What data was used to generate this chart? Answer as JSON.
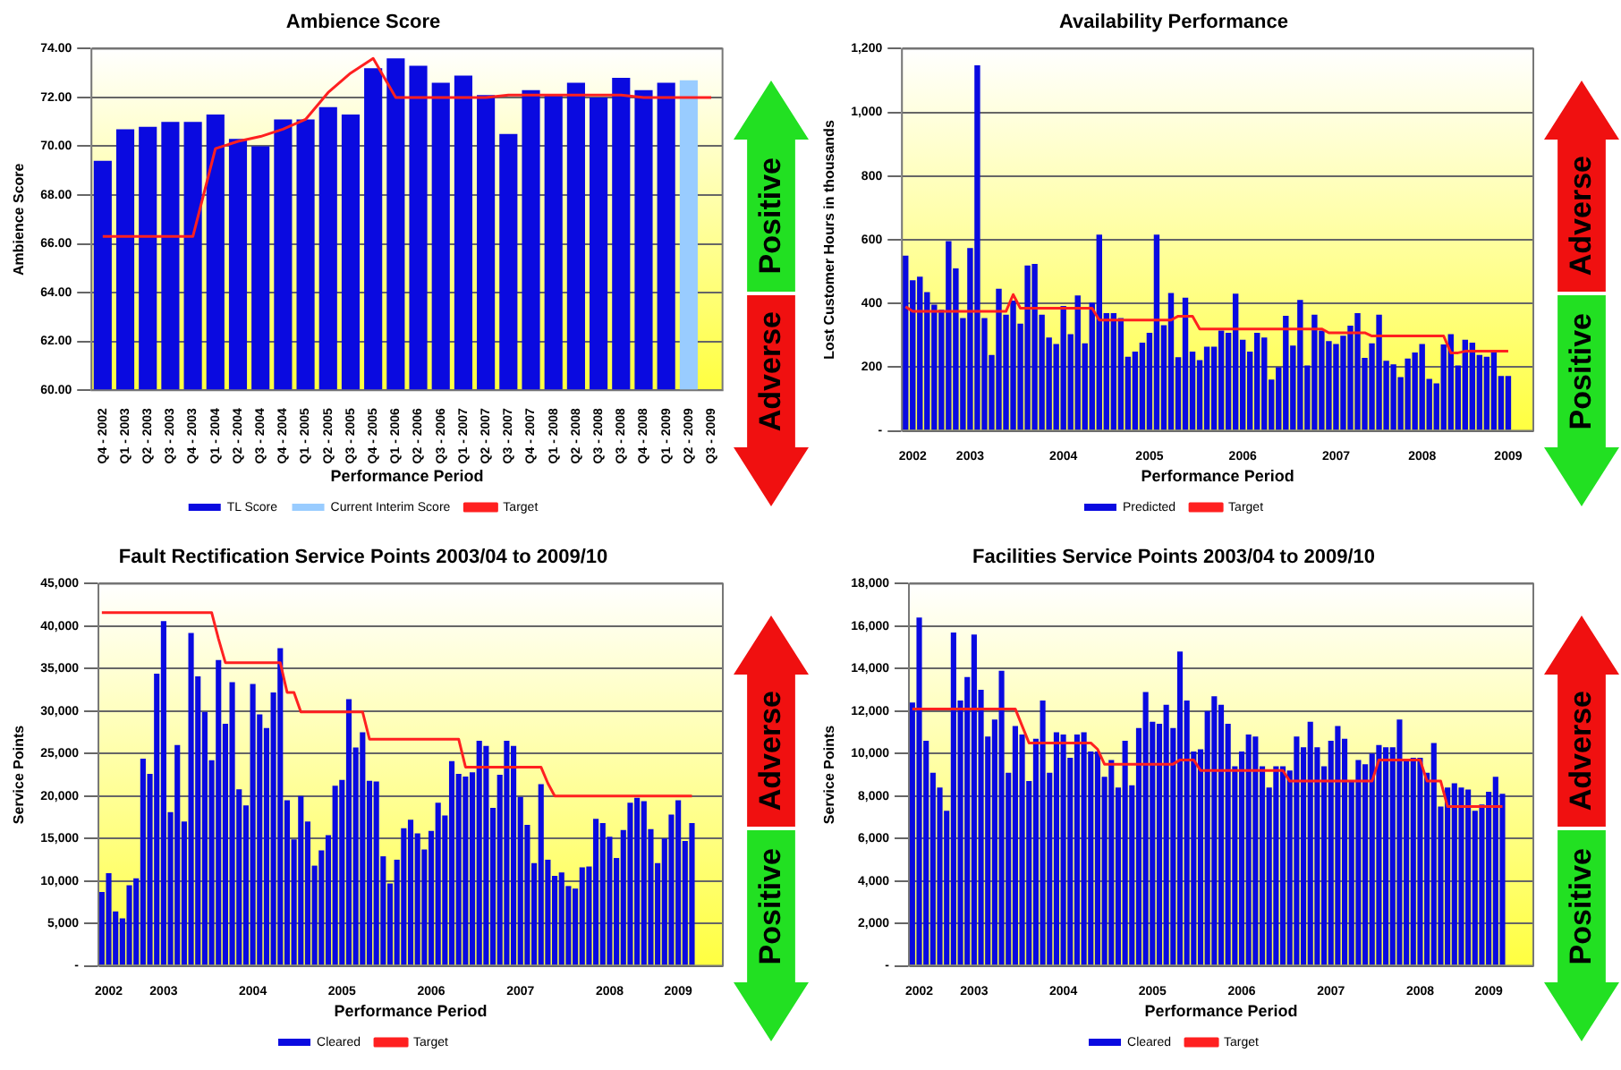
{
  "chart_data": [
    {
      "type": "bar",
      "title": "Ambience Score",
      "xlabel": "Performance Period",
      "ylabel": "Ambience Score",
      "categories": [
        "Q4 - 2002",
        "Q1 - 2003",
        "Q2 - 2003",
        "Q3 - 2003",
        "Q4 - 2003",
        "Q1 - 2004",
        "Q2 - 2004",
        "Q3 - 2004",
        "Q4 - 2004",
        "Q1 - 2005",
        "Q2 - 2005",
        "Q3 - 2005",
        "Q4 - 2005",
        "Q1 - 2006",
        "Q2 - 2006",
        "Q3 - 2006",
        "Q1 - 2007",
        "Q2 - 2007",
        "Q3 - 2007",
        "Q4 - 2007",
        "Q1 - 2008",
        "Q2 - 2008",
        "Q3 - 2008",
        "Q3 - 2008",
        "Q4 - 2008",
        "Q1 - 2009",
        "Q2 - 2009",
        "Q3 - 2009"
      ],
      "series": [
        {
          "name": "TL Score",
          "color": "#0a0ae0",
          "values": [
            69.4,
            70.7,
            70.8,
            71.0,
            71.0,
            71.3,
            70.3,
            70.0,
            71.1,
            71.1,
            71.6,
            71.3,
            73.2,
            73.6,
            73.3,
            72.6,
            72.9,
            72.1,
            70.5,
            72.3,
            72.1,
            72.6,
            72.0,
            72.8,
            72.3,
            72.6,
            null,
            null
          ]
        },
        {
          "name": "Current Interim Score",
          "color": "#99ccff",
          "values": [
            null,
            null,
            null,
            null,
            null,
            null,
            null,
            null,
            null,
            null,
            null,
            null,
            null,
            null,
            null,
            null,
            null,
            null,
            null,
            null,
            null,
            null,
            null,
            null,
            null,
            null,
            72.7,
            null
          ]
        },
        {
          "name": "Target",
          "type": "line",
          "color": "#ff2020",
          "values": [
            66.3,
            66.3,
            66.3,
            66.3,
            66.3,
            69.9,
            70.2,
            70.4,
            70.7,
            71.1,
            72.2,
            73.0,
            73.6,
            72.0,
            72.0,
            72.0,
            72.0,
            72.0,
            72.1,
            72.1,
            72.1,
            72.1,
            72.1,
            72.1,
            72.0,
            72.0,
            72.0,
            72.0
          ]
        }
      ],
      "ylim": [
        60,
        74
      ],
      "yticks": [
        {
          "value": 60,
          "label": "60.00"
        },
        {
          "value": 62,
          "label": "62.00"
        },
        {
          "value": 64,
          "label": "64.00"
        },
        {
          "value": 66,
          "label": "66.00"
        },
        {
          "value": 68,
          "label": "68.00"
        },
        {
          "value": 70,
          "label": "70.00"
        },
        {
          "value": 72,
          "label": "72.00"
        },
        {
          "value": 74,
          "label": "74.00"
        }
      ],
      "grid": "y",
      "legend": "bottom",
      "marker": "none",
      "annotations": [
        "Positive",
        "Adverse"
      ]
    },
    {
      "type": "bar",
      "title": "Availability Performance",
      "xlabel": "Performance Period",
      "ylabel": "Lost Customer Hours in thousands",
      "categories": [
        null,
        "2002",
        null,
        null,
        null,
        null,
        null,
        null,
        null,
        "2003",
        null,
        null,
        null,
        null,
        null,
        null,
        null,
        null,
        null,
        null,
        null,
        null,
        "2004",
        null,
        null,
        null,
        null,
        null,
        null,
        null,
        null,
        null,
        null,
        null,
        "2005",
        null,
        null,
        null,
        null,
        null,
        null,
        null,
        null,
        null,
        null,
        null,
        null,
        "2006",
        null,
        null,
        null,
        null,
        null,
        null,
        null,
        null,
        null,
        null,
        null,
        null,
        "2007",
        null,
        null,
        null,
        null,
        null,
        null,
        null,
        null,
        null,
        null,
        null,
        "2008",
        null,
        null,
        null,
        null,
        null,
        null,
        null,
        null,
        null,
        null,
        null,
        "2009",
        null,
        null,
        null
      ],
      "series": [
        {
          "name": "Predicted",
          "color": "#0a0ae0",
          "values": [
            550,
            473,
            484,
            436,
            396,
            380,
            596,
            510,
            354,
            574,
            1148,
            354,
            238,
            446,
            365,
            409,
            337,
            519,
            524,
            365,
            293,
            273,
            392,
            304,
            425,
            275,
            403,
            616,
            370,
            370,
            354,
            233,
            249,
            277,
            308,
            616,
            332,
            433,
            231,
            418,
            249,
            222,
            264,
            264,
            315,
            308,
            431,
            286,
            249,
            308,
            293,
            161,
            200,
            361,
            268,
            411,
            205,
            365,
            315,
            282,
            273,
            299,
            330,
            370,
            229,
            275,
            365,
            220,
            209,
            169,
            227,
            246,
            273,
            163,
            149,
            271,
            304,
            205,
            286,
            277,
            238,
            233,
            249,
            172,
            172,
            null,
            null,
            null
          ]
        },
        {
          "name": "Target",
          "type": "line",
          "color": "#ff2020",
          "values": [
            390,
            375,
            375,
            375,
            375,
            375,
            375,
            375,
            375,
            375,
            375,
            375,
            375,
            375,
            375,
            428,
            385,
            385,
            385,
            385,
            385,
            385,
            385,
            385,
            385,
            385,
            385,
            348,
            348,
            348,
            348,
            348,
            348,
            348,
            348,
            348,
            348,
            348,
            360,
            360,
            360,
            320,
            320,
            320,
            320,
            320,
            320,
            320,
            320,
            320,
            320,
            320,
            320,
            320,
            320,
            320,
            320,
            320,
            320,
            308,
            308,
            308,
            308,
            308,
            308,
            298,
            298,
            298,
            298,
            298,
            298,
            298,
            298,
            298,
            298,
            298,
            245,
            245,
            250,
            250,
            250,
            250,
            250,
            250,
            250,
            null,
            null,
            null
          ]
        }
      ],
      "ylim": [
        0,
        1200
      ],
      "yticks": [
        {
          "value": 0,
          "label": "-"
        },
        200,
        400,
        600,
        800,
        {
          "value": 1000,
          "label": "1,000"
        },
        {
          "value": 1200,
          "label": "1,200"
        }
      ],
      "grid": "y",
      "legend": "bottom",
      "marker": "none",
      "annotations": [
        "Adverse",
        "Positive"
      ]
    },
    {
      "type": "bar",
      "title": "Fault Rectification Service Points 2003/04 to 2009/10",
      "xlabel": "Performance Period",
      "ylabel": "Service Points",
      "categories": [
        null,
        "2002",
        null,
        null,
        null,
        null,
        null,
        null,
        null,
        "2003",
        null,
        null,
        null,
        null,
        null,
        null,
        null,
        null,
        null,
        null,
        null,
        null,
        "2004",
        null,
        null,
        null,
        null,
        null,
        null,
        null,
        null,
        null,
        null,
        null,
        null,
        "2005",
        null,
        null,
        null,
        null,
        null,
        null,
        null,
        null,
        null,
        null,
        null,
        null,
        "2006",
        null,
        null,
        null,
        null,
        null,
        null,
        null,
        null,
        null,
        null,
        null,
        null,
        "2007",
        null,
        null,
        null,
        null,
        null,
        null,
        null,
        null,
        null,
        null,
        null,
        null,
        "2008",
        null,
        null,
        null,
        null,
        null,
        null,
        null,
        null,
        null,
        "2009",
        null,
        null,
        null,
        null,
        null,
        null
      ],
      "series": [
        {
          "name": "Cleared",
          "color": "#0a0ae0",
          "values": [
            8700,
            10900,
            6400,
            5600,
            9500,
            10300,
            24400,
            22600,
            34400,
            40600,
            18100,
            26000,
            17000,
            39200,
            34100,
            29900,
            24200,
            36000,
            28500,
            33400,
            20800,
            18900,
            33200,
            29600,
            28000,
            32200,
            37400,
            19500,
            14900,
            20000,
            17000,
            11800,
            13600,
            15400,
            21200,
            21900,
            31400,
            25700,
            27500,
            21800,
            21700,
            12900,
            9700,
            12500,
            16200,
            17200,
            15600,
            13700,
            15900,
            19200,
            17700,
            24100,
            22600,
            22300,
            22800,
            26500,
            25900,
            18600,
            22500,
            26500,
            25900,
            19900,
            16600,
            12100,
            21400,
            12500,
            10600,
            11000,
            9400,
            9100,
            11600,
            11700,
            17300,
            16800,
            15200,
            12700,
            16000,
            19200,
            19800,
            19400,
            16100,
            12100,
            15000,
            17800,
            19500,
            14700,
            16800,
            null,
            null,
            null,
            null
          ]
        },
        {
          "name": "Target",
          "type": "line",
          "color": "#ff2020",
          "values": [
            41600,
            41600,
            41600,
            41600,
            41600,
            41600,
            41600,
            41600,
            41600,
            41600,
            41600,
            41600,
            41600,
            41600,
            41600,
            41600,
            41600,
            38500,
            35700,
            35700,
            35700,
            35700,
            35700,
            35700,
            35700,
            35700,
            35700,
            32200,
            32200,
            29900,
            29900,
            29900,
            29900,
            29900,
            29900,
            29900,
            29900,
            29900,
            29900,
            26700,
            26700,
            26700,
            26700,
            26700,
            26700,
            26700,
            26700,
            26700,
            26700,
            26700,
            26700,
            26700,
            26700,
            23400,
            23400,
            23400,
            23400,
            23400,
            23400,
            23400,
            23400,
            23400,
            23400,
            23400,
            23400,
            21500,
            20000,
            20000,
            20000,
            20000,
            20000,
            20000,
            20000,
            20000,
            20000,
            20000,
            20000,
            20000,
            20000,
            20000,
            20000,
            20000,
            20000,
            20000,
            20000,
            20000,
            20000,
            null,
            null,
            null,
            null
          ]
        }
      ],
      "ylim": [
        0,
        45000
      ],
      "yticks": [
        {
          "value": 0,
          "label": "-"
        },
        {
          "value": 5000,
          "label": "5,000"
        },
        {
          "value": 10000,
          "label": "10,000"
        },
        {
          "value": 15000,
          "label": "15,000"
        },
        {
          "value": 20000,
          "label": "20,000"
        },
        {
          "value": 25000,
          "label": "25,000"
        },
        {
          "value": 30000,
          "label": "30,000"
        },
        {
          "value": 35000,
          "label": "35,000"
        },
        {
          "value": 40000,
          "label": "40,000"
        },
        {
          "value": 45000,
          "label": "45,000"
        }
      ],
      "grid": "y",
      "legend": "bottom",
      "marker": "none",
      "annotations": [
        "Adverse",
        "Positive"
      ]
    },
    {
      "type": "bar",
      "title": "Facilities Service Points 2003/04 to 2009/10",
      "xlabel": "Performance Period",
      "ylabel": "Service Points",
      "categories": [
        null,
        "2002",
        null,
        null,
        null,
        null,
        null,
        null,
        null,
        "2003",
        null,
        null,
        null,
        null,
        null,
        null,
        null,
        null,
        null,
        null,
        null,
        null,
        "2004",
        null,
        null,
        null,
        null,
        null,
        null,
        null,
        null,
        null,
        null,
        null,
        null,
        "2005",
        null,
        null,
        null,
        null,
        null,
        null,
        null,
        null,
        null,
        null,
        null,
        null,
        "2006",
        null,
        null,
        null,
        null,
        null,
        null,
        null,
        null,
        null,
        null,
        null,
        null,
        "2007",
        null,
        null,
        null,
        null,
        null,
        null,
        null,
        null,
        null,
        null,
        null,
        null,
        "2008",
        null,
        null,
        null,
        null,
        null,
        null,
        null,
        null,
        null,
        "2009",
        null,
        null,
        null,
        null,
        null,
        null
      ],
      "series": [
        {
          "name": "Cleared",
          "color": "#0a0ae0",
          "values": [
            12400,
            16400,
            10600,
            9100,
            8400,
            7300,
            15700,
            12500,
            13600,
            15600,
            13000,
            10800,
            11600,
            13900,
            9100,
            11300,
            10900,
            8700,
            10700,
            12500,
            9100,
            11000,
            10900,
            9800,
            10900,
            11000,
            10100,
            10100,
            8900,
            9700,
            8400,
            10600,
            8500,
            11200,
            12900,
            11500,
            11400,
            12300,
            11200,
            14800,
            12500,
            10100,
            10200,
            12000,
            12700,
            12300,
            11400,
            9400,
            10100,
            10900,
            10800,
            9400,
            8400,
            9400,
            9400,
            9200,
            10800,
            10300,
            11500,
            10300,
            9400,
            10600,
            11300,
            10700,
            8700,
            9700,
            9500,
            10000,
            10400,
            10300,
            10300,
            11600,
            9700,
            9800,
            9800,
            9100,
            10500,
            7500,
            8400,
            8600,
            8400,
            8300,
            7300,
            7600,
            8200,
            8900,
            8100,
            null,
            null,
            null,
            null
          ]
        },
        {
          "name": "Target",
          "type": "line",
          "color": "#ff2020",
          "values": [
            12100,
            12100,
            12100,
            12100,
            12100,
            12100,
            12100,
            12100,
            12100,
            12100,
            12100,
            12100,
            12100,
            12100,
            12100,
            12100,
            11300,
            10500,
            10500,
            10500,
            10500,
            10500,
            10500,
            10500,
            10500,
            10500,
            10500,
            10200,
            9500,
            9500,
            9500,
            9500,
            9500,
            9500,
            9500,
            9500,
            9500,
            9500,
            9500,
            9700,
            9700,
            9700,
            9200,
            9200,
            9200,
            9200,
            9200,
            9200,
            9200,
            9200,
            9200,
            9200,
            9200,
            9200,
            9200,
            8700,
            8700,
            8700,
            8700,
            8700,
            8700,
            8700,
            8700,
            8700,
            8700,
            8700,
            8700,
            8700,
            9700,
            9700,
            9700,
            9700,
            9700,
            9700,
            9700,
            8700,
            8700,
            8700,
            7500,
            7500,
            7500,
            7500,
            7500,
            7500,
            7500,
            7500,
            7500,
            null,
            null,
            null,
            null
          ]
        }
      ],
      "ylim": [
        0,
        18000
      ],
      "yticks": [
        {
          "value": 0,
          "label": "-"
        },
        {
          "value": 2000,
          "label": "2,000"
        },
        {
          "value": 4000,
          "label": "4,000"
        },
        {
          "value": 6000,
          "label": "6,000"
        },
        {
          "value": 8000,
          "label": "8,000"
        },
        {
          "value": 10000,
          "label": "10,000"
        },
        {
          "value": 12000,
          "label": "12,000"
        },
        {
          "value": 14000,
          "label": "14,000"
        },
        {
          "value": 16000,
          "label": "16,000"
        },
        {
          "value": 18000,
          "label": "18,000"
        }
      ],
      "grid": "y",
      "legend": "bottom",
      "marker": "none",
      "annotations": [
        "Adverse",
        "Positive"
      ]
    }
  ]
}
